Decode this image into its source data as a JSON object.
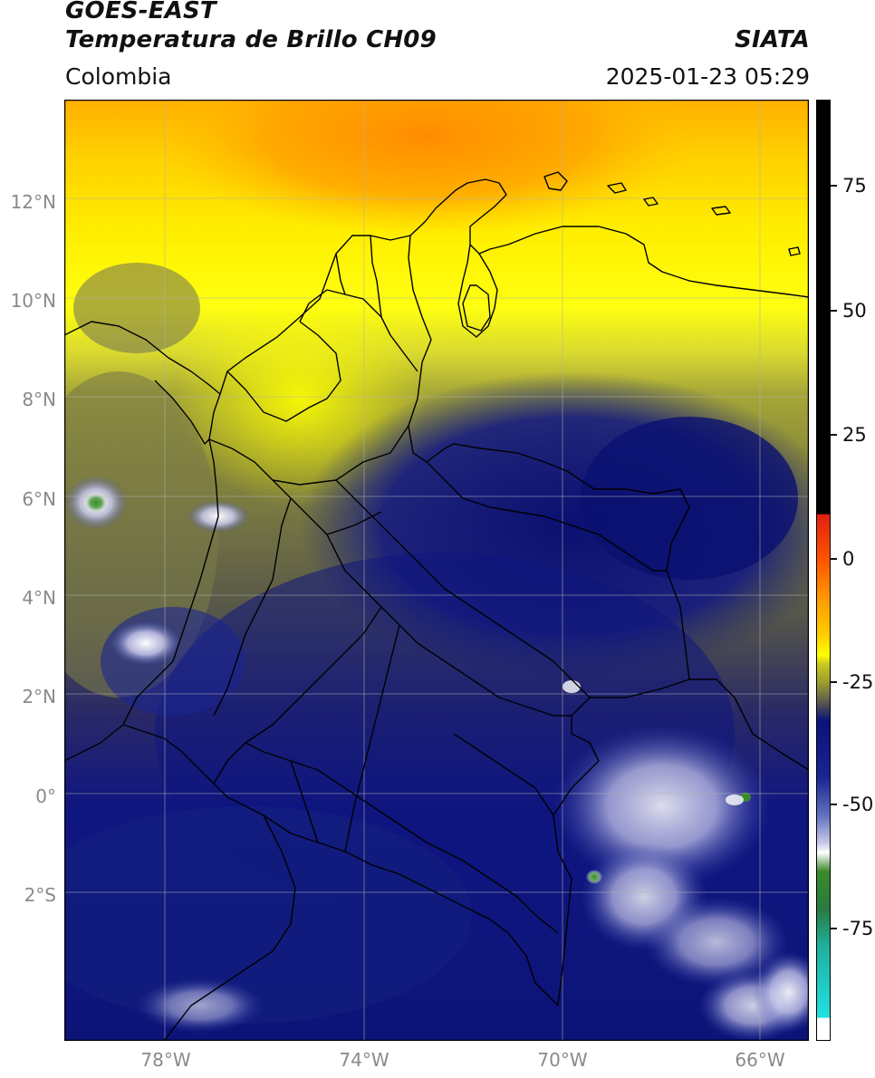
{
  "header": {
    "satellite": "GOES-EAST",
    "product": "Temperatura de Brillo CH09",
    "agency": "SIATA",
    "region": "Colombia",
    "datetime": "2025-01-23 05:29"
  },
  "axes": {
    "lat_labels": [
      "12°N",
      "10°N",
      "8°N",
      "6°N",
      "4°N",
      "2°N",
      "0°",
      "2°S"
    ],
    "lat_values": [
      12,
      10,
      8,
      6,
      4,
      2,
      0,
      -2
    ],
    "lon_labels": [
      "78°W",
      "74°W",
      "70°W",
      "66°W"
    ],
    "lon_values": [
      -78,
      -74,
      -70,
      -66
    ],
    "extent": {
      "lon_min": -80,
      "lon_max": -65,
      "lat_min": -5,
      "lat_max": 14
    }
  },
  "colorbar": {
    "tick_labels": [
      "75",
      "50",
      "25",
      "0",
      "-25",
      "-50",
      "-75"
    ],
    "tick_values": [
      75,
      50,
      25,
      0,
      -25,
      -50,
      -75
    ],
    "range": [
      -95,
      90
    ],
    "colors": {
      "black": "#000000",
      "red": "#e02010",
      "orange": "#ff9a00",
      "yellow": "#ffff00",
      "olive": "#9a9a30",
      "gray": "#5a5a50",
      "navy": "#0a127a",
      "blue": "#3040a0",
      "lavender": "#c8c8e8",
      "white": "#ffffff",
      "green": "#3a8a2a",
      "teal": "#20b0a0",
      "cyan": "#20e0e0"
    }
  }
}
